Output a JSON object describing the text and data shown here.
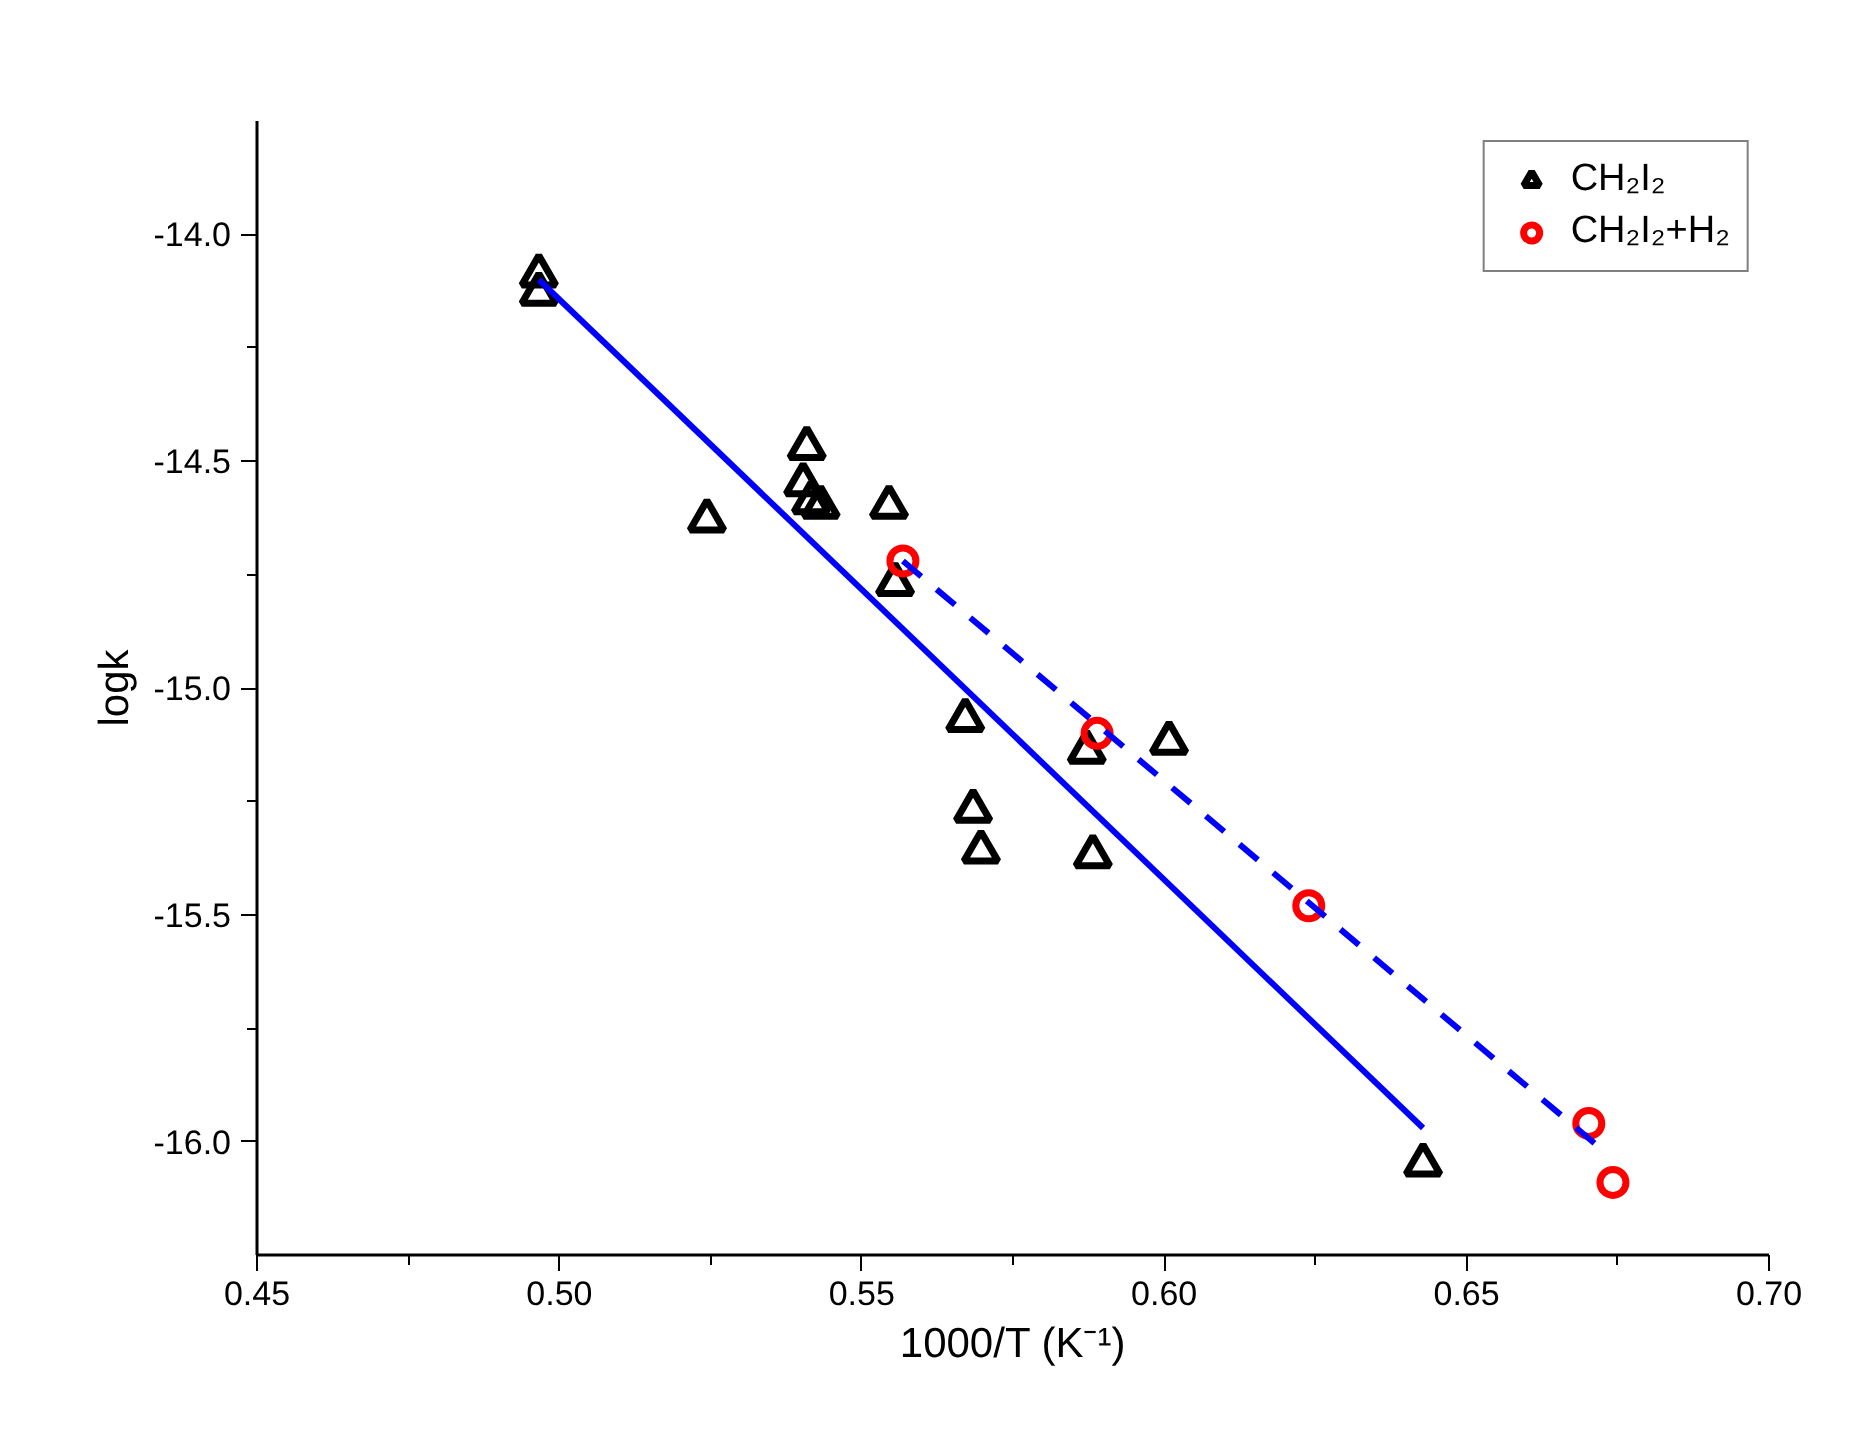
{
  "chart_data": {
    "type": "scatter",
    "xlabel": "1000/T (K⁻¹)",
    "ylabel": "logk",
    "xlim": [
      0.45,
      0.7
    ],
    "ylim": [
      -16.25,
      -13.75
    ],
    "xticks": [
      {
        "value": 0.45,
        "label": "0.45"
      },
      {
        "value": 0.5,
        "label": "0.50"
      },
      {
        "value": 0.55,
        "label": "0.55"
      },
      {
        "value": 0.6,
        "label": "0.60"
      },
      {
        "value": 0.65,
        "label": "0.65"
      },
      {
        "value": 0.7,
        "label": "0.70"
      }
    ],
    "yticks": [
      {
        "value": -16.0,
        "label": "-16.0"
      },
      {
        "value": -15.5,
        "label": "-15.5"
      },
      {
        "value": -15.0,
        "label": "-15.0"
      },
      {
        "value": -14.5,
        "label": "-14.5"
      },
      {
        "value": -14.0,
        "label": "-14.0"
      }
    ],
    "legend": "top right",
    "grid": false,
    "series": [
      {
        "name": "CH₂I₂",
        "marker": "triangle",
        "color": "#000000",
        "x": [
          0.4966,
          0.4966,
          0.5244,
          0.5409,
          0.5403,
          0.5416,
          0.5432,
          0.5545,
          0.5555,
          0.5671,
          0.5684,
          0.5697,
          0.5872,
          0.6008,
          0.5882,
          0.6428
        ],
        "values": [
          -14.09,
          -14.13,
          -14.63,
          -14.47,
          -14.55,
          -14.59,
          -14.6,
          -14.6,
          -14.77,
          -15.07,
          -15.27,
          -15.36,
          -15.14,
          -15.12,
          -15.37,
          -16.05
        ]
      },
      {
        "name": "CH₂I₂+H₂",
        "marker": "circle",
        "color": "#ff0000",
        "x": [
          0.5568,
          0.5889,
          0.6239,
          0.6702,
          0.6742
        ],
        "values": [
          -14.72,
          -15.1,
          -15.48,
          -15.96,
          -16.09
        ]
      },
      {
        "type": "line",
        "line_style": "solid",
        "color": "#0000ff",
        "x": [
          0.4966,
          0.6428
        ],
        "values": [
          -14.1,
          -15.97
        ]
      },
      {
        "type": "line",
        "line_style": "dashed",
        "color": "#0000ff",
        "x": [
          0.5568,
          0.6726
        ],
        "values": [
          -14.72,
          -16.02
        ]
      }
    ]
  }
}
